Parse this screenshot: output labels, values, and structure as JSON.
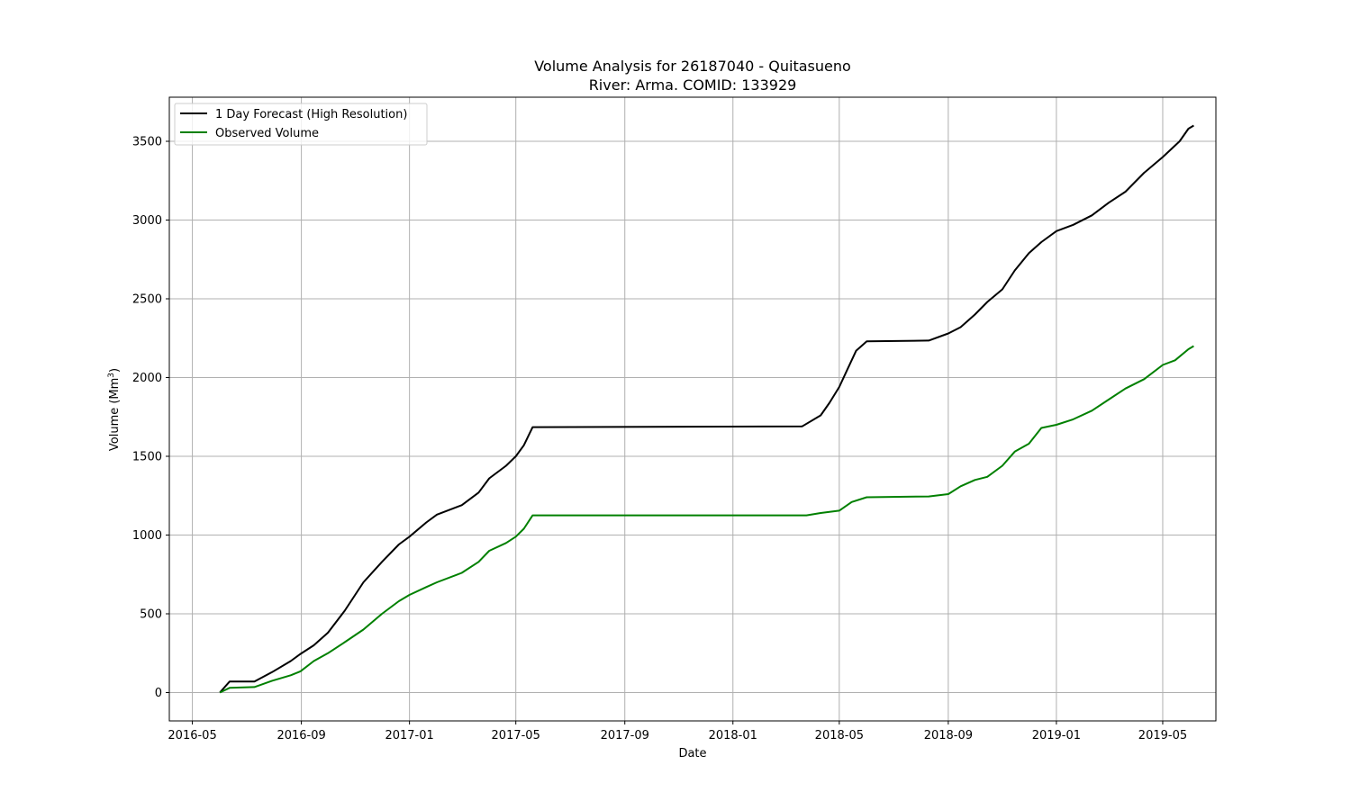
{
  "chart_data": {
    "type": "line",
    "title": "Volume Analysis for 26187040 - Quitasueno",
    "subtitle": "River: Arma. COMID: 133929",
    "xlabel": "Date",
    "ylabel_main": "Volume (Mm",
    "ylabel_sup": "3",
    "ylabel_end": ")",
    "xlim": [
      "2016-04-05",
      "2019-06-30"
    ],
    "ylim": [
      -180,
      3780
    ],
    "x_ticks": [
      "2016-05",
      "2016-09",
      "2017-01",
      "2017-05",
      "2017-09",
      "2018-01",
      "2018-05",
      "2018-09",
      "2019-01",
      "2019-05"
    ],
    "y_ticks": [
      0,
      500,
      1000,
      1500,
      2000,
      2500,
      3000,
      3500
    ],
    "grid": true,
    "legend_position": "top-left",
    "series": [
      {
        "name": "1 Day Forecast (High Resolution)",
        "color": "#000000",
        "points": [
          [
            "2016-06-01",
            0
          ],
          [
            "2016-06-12",
            70
          ],
          [
            "2016-07-10",
            70
          ],
          [
            "2016-07-30",
            130
          ],
          [
            "2016-08-20",
            200
          ],
          [
            "2016-08-31",
            245
          ],
          [
            "2016-09-15",
            300
          ],
          [
            "2016-10-01",
            380
          ],
          [
            "2016-10-20",
            520
          ],
          [
            "2016-11-10",
            700
          ],
          [
            "2016-12-01",
            830
          ],
          [
            "2016-12-20",
            940
          ],
          [
            "2017-01-01",
            990
          ],
          [
            "2017-01-20",
            1080
          ],
          [
            "2017-02-01",
            1130
          ],
          [
            "2017-03-01",
            1190
          ],
          [
            "2017-03-20",
            1270
          ],
          [
            "2017-04-01",
            1360
          ],
          [
            "2017-04-20",
            1440
          ],
          [
            "2017-05-01",
            1500
          ],
          [
            "2017-05-10",
            1570
          ],
          [
            "2017-05-20",
            1685
          ],
          [
            "2018-03-20",
            1690
          ],
          [
            "2018-04-10",
            1760
          ],
          [
            "2018-04-20",
            1840
          ],
          [
            "2018-05-01",
            1940
          ],
          [
            "2018-05-10",
            2050
          ],
          [
            "2018-05-20",
            2170
          ],
          [
            "2018-06-01",
            2230
          ],
          [
            "2018-08-10",
            2235
          ],
          [
            "2018-09-01",
            2280
          ],
          [
            "2018-09-15",
            2320
          ],
          [
            "2018-10-01",
            2400
          ],
          [
            "2018-10-15",
            2480
          ],
          [
            "2018-11-01",
            2560
          ],
          [
            "2018-11-15",
            2680
          ],
          [
            "2018-12-01",
            2790
          ],
          [
            "2018-12-15",
            2860
          ],
          [
            "2019-01-01",
            2930
          ],
          [
            "2019-01-20",
            2970
          ],
          [
            "2019-02-10",
            3030
          ],
          [
            "2019-03-01",
            3110
          ],
          [
            "2019-03-20",
            3180
          ],
          [
            "2019-04-10",
            3300
          ],
          [
            "2019-05-01",
            3400
          ],
          [
            "2019-05-20",
            3500
          ],
          [
            "2019-05-30",
            3580
          ],
          [
            "2019-06-05",
            3600
          ]
        ]
      },
      {
        "name": "Observed Volume",
        "color": "#008000",
        "points": [
          [
            "2016-06-01",
            0
          ],
          [
            "2016-06-12",
            30
          ],
          [
            "2016-07-10",
            35
          ],
          [
            "2016-07-30",
            75
          ],
          [
            "2016-08-20",
            110
          ],
          [
            "2016-08-31",
            135
          ],
          [
            "2016-09-15",
            200
          ],
          [
            "2016-10-01",
            250
          ],
          [
            "2016-10-20",
            320
          ],
          [
            "2016-11-10",
            400
          ],
          [
            "2016-12-01",
            500
          ],
          [
            "2016-12-20",
            580
          ],
          [
            "2017-01-01",
            620
          ],
          [
            "2017-01-20",
            670
          ],
          [
            "2017-02-01",
            700
          ],
          [
            "2017-03-01",
            760
          ],
          [
            "2017-03-20",
            830
          ],
          [
            "2017-04-01",
            900
          ],
          [
            "2017-04-20",
            950
          ],
          [
            "2017-05-01",
            990
          ],
          [
            "2017-05-10",
            1040
          ],
          [
            "2017-05-20",
            1125
          ],
          [
            "2018-03-25",
            1125
          ],
          [
            "2018-04-10",
            1140
          ],
          [
            "2018-05-01",
            1155
          ],
          [
            "2018-05-15",
            1210
          ],
          [
            "2018-06-01",
            1240
          ],
          [
            "2018-08-10",
            1245
          ],
          [
            "2018-09-01",
            1260
          ],
          [
            "2018-09-15",
            1310
          ],
          [
            "2018-10-01",
            1350
          ],
          [
            "2018-10-15",
            1370
          ],
          [
            "2018-11-01",
            1440
          ],
          [
            "2018-11-15",
            1530
          ],
          [
            "2018-12-01",
            1580
          ],
          [
            "2018-12-15",
            1680
          ],
          [
            "2019-01-01",
            1700
          ],
          [
            "2019-01-20",
            1735
          ],
          [
            "2019-02-10",
            1790
          ],
          [
            "2019-03-01",
            1860
          ],
          [
            "2019-03-20",
            1930
          ],
          [
            "2019-04-10",
            1990
          ],
          [
            "2019-05-01",
            2080
          ],
          [
            "2019-05-15",
            2110
          ],
          [
            "2019-05-30",
            2180
          ],
          [
            "2019-06-05",
            2200
          ]
        ]
      }
    ]
  }
}
